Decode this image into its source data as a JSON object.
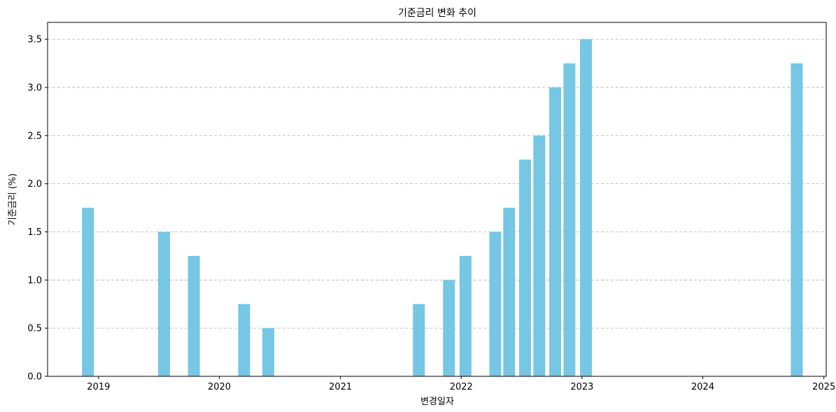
{
  "chart_data": {
    "type": "bar",
    "title": "기준금리 변화 추이",
    "xlabel": "변경일자",
    "ylabel": "기준금리 (%)",
    "x": [
      "2018-11-30",
      "2019-07-18",
      "2019-10-16",
      "2020-03-16",
      "2020-05-28",
      "2021-08-26",
      "2021-11-25",
      "2022-01-14",
      "2022-04-14",
      "2022-05-26",
      "2022-07-13",
      "2022-08-25",
      "2022-10-12",
      "2022-11-24",
      "2023-01-13",
      "2024-10-11"
    ],
    "values": [
      1.75,
      1.5,
      1.25,
      0.75,
      0.5,
      0.75,
      1.0,
      1.25,
      1.5,
      1.75,
      2.25,
      2.5,
      3.0,
      3.25,
      3.5,
      3.25
    ],
    "xlim": [
      "2018-07-31",
      "2025-01-08"
    ],
    "ylim": [
      0,
      3.675
    ],
    "y_ticks": [
      "0.0",
      "0.5",
      "1.0",
      "1.5",
      "2.0",
      "2.5",
      "3.0",
      "3.5"
    ],
    "x_ticks": [
      "2019",
      "2020",
      "2021",
      "2022",
      "2023",
      "2024",
      "2025"
    ],
    "bar_color": "#76c7e3",
    "grid": "y-dashed",
    "legend": "none"
  }
}
